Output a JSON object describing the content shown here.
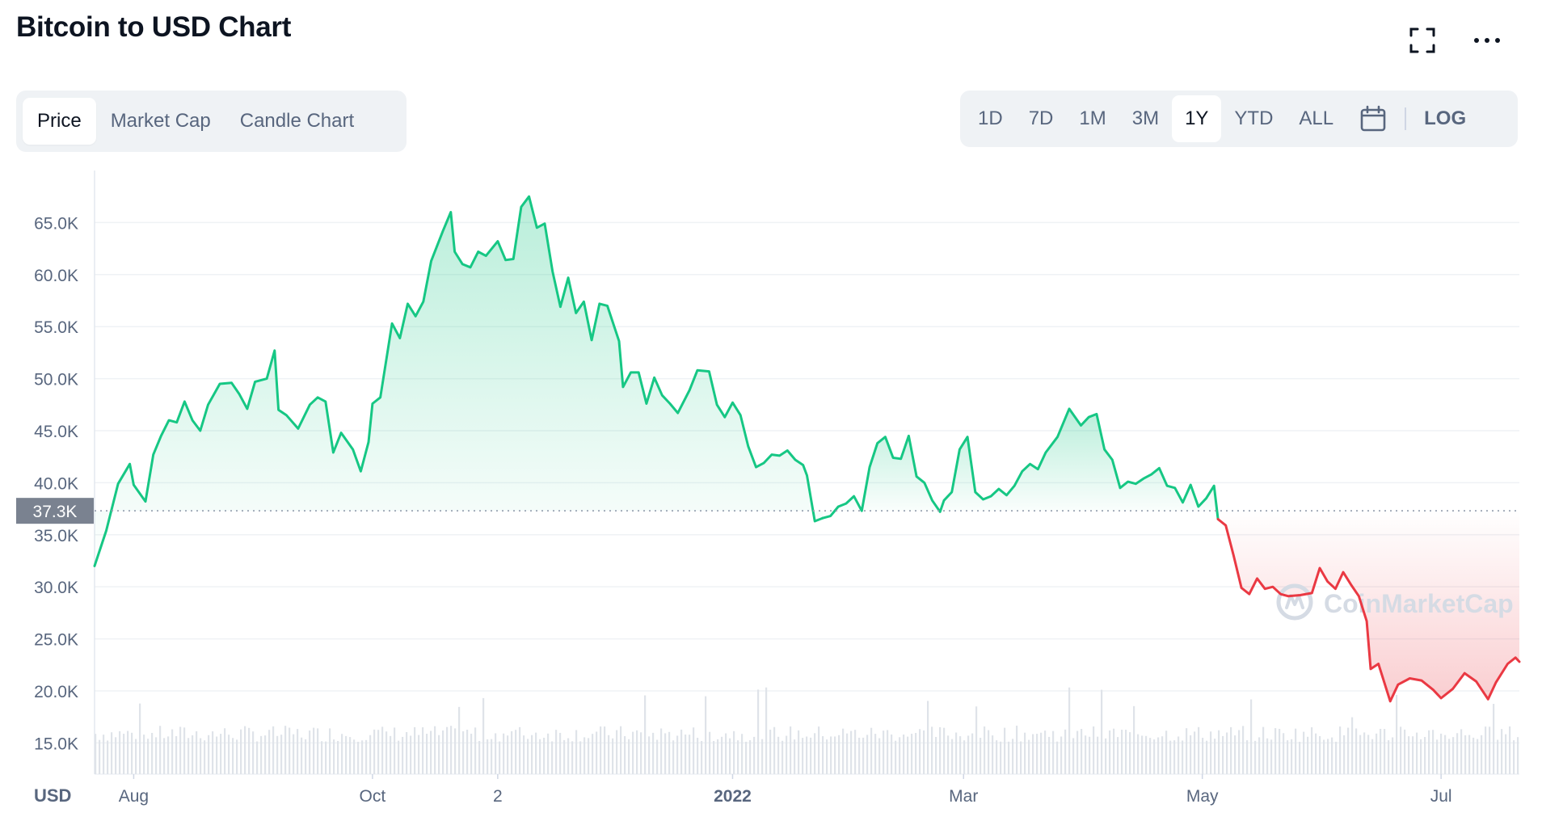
{
  "header": {
    "title": "Bitcoin to USD Chart",
    "icons": [
      "expand-icon",
      "more-horizontal-icon"
    ]
  },
  "tabs": [
    {
      "label": "Price",
      "active": true
    },
    {
      "label": "Market Cap",
      "active": false
    },
    {
      "label": "Candle Chart",
      "active": false
    }
  ],
  "ranges": [
    {
      "label": "1D",
      "active": false
    },
    {
      "label": "7D",
      "active": false
    },
    {
      "label": "1M",
      "active": false
    },
    {
      "label": "3M",
      "active": false
    },
    {
      "label": "1Y",
      "active": true
    },
    {
      "label": "YTD",
      "active": false
    },
    {
      "label": "ALL",
      "active": false
    }
  ],
  "calendar_icon": "calendar-icon",
  "log_label": "LOG",
  "colors": {
    "up": "#16c784",
    "down": "#ea3943",
    "grid": "#eff2f5",
    "current_badge": "#7a8290"
  },
  "chart_data": {
    "type": "line",
    "currency_label": "USD",
    "y_ticks": [
      15000,
      20000,
      25000,
      30000,
      35000,
      40000,
      45000,
      50000,
      55000,
      60000,
      65000
    ],
    "y_tick_labels": [
      "15.0K",
      "20.0K",
      "25.0K",
      "30.0K",
      "35.0K",
      "40.0K",
      "45.0K",
      "50.0K",
      "55.0K",
      "60.0K",
      "65.0K"
    ],
    "ylim": [
      12000,
      70000
    ],
    "x_range": [
      "2021-07-22",
      "2022-07-21"
    ],
    "x_ticks": [
      {
        "date": "2021-08-01",
        "label": "Aug"
      },
      {
        "date": "2021-10-01",
        "label": "Oct"
      },
      {
        "date": "2021-11-02",
        "label": "2"
      },
      {
        "date": "2022-01-01",
        "label": "2022"
      },
      {
        "date": "2022-03-01",
        "label": "Mar"
      },
      {
        "date": "2022-05-01",
        "label": "May"
      },
      {
        "date": "2022-07-01",
        "label": "Jul"
      }
    ],
    "reference_price": 37300,
    "reference_label": "37.3K",
    "watermark": "CoinMarketCap",
    "series": [
      {
        "points": [
          [
            "2021-07-22",
            32000
          ],
          [
            "2021-07-25",
            35400
          ],
          [
            "2021-07-28",
            39900
          ],
          [
            "2021-07-31",
            41800
          ],
          [
            "2021-08-01",
            39800
          ],
          [
            "2021-08-04",
            38200
          ],
          [
            "2021-08-06",
            42700
          ],
          [
            "2021-08-08",
            44500
          ],
          [
            "2021-08-10",
            46000
          ],
          [
            "2021-08-12",
            45800
          ],
          [
            "2021-08-14",
            47800
          ],
          [
            "2021-08-16",
            46000
          ],
          [
            "2021-08-18",
            45000
          ],
          [
            "2021-08-20",
            47500
          ],
          [
            "2021-08-23",
            49500
          ],
          [
            "2021-08-26",
            49600
          ],
          [
            "2021-08-28",
            48500
          ],
          [
            "2021-08-30",
            47100
          ],
          [
            "2021-09-01",
            49700
          ],
          [
            "2021-09-04",
            50000
          ],
          [
            "2021-09-06",
            52700
          ],
          [
            "2021-09-07",
            47000
          ],
          [
            "2021-09-09",
            46500
          ],
          [
            "2021-09-12",
            45200
          ],
          [
            "2021-09-15",
            47500
          ],
          [
            "2021-09-17",
            48200
          ],
          [
            "2021-09-19",
            47800
          ],
          [
            "2021-09-21",
            42900
          ],
          [
            "2021-09-23",
            44800
          ],
          [
            "2021-09-26",
            43200
          ],
          [
            "2021-09-28",
            41100
          ],
          [
            "2021-09-30",
            43900
          ],
          [
            "2021-10-01",
            47600
          ],
          [
            "2021-10-03",
            48200
          ],
          [
            "2021-10-06",
            55300
          ],
          [
            "2021-10-08",
            53900
          ],
          [
            "2021-10-10",
            57200
          ],
          [
            "2021-10-12",
            56000
          ],
          [
            "2021-10-14",
            57400
          ],
          [
            "2021-10-16",
            61300
          ],
          [
            "2021-10-19",
            64200
          ],
          [
            "2021-10-21",
            66000
          ],
          [
            "2021-10-22",
            62200
          ],
          [
            "2021-10-24",
            61000
          ],
          [
            "2021-10-26",
            60700
          ],
          [
            "2021-10-28",
            62200
          ],
          [
            "2021-10-30",
            61800
          ],
          [
            "2021-11-02",
            63200
          ],
          [
            "2021-11-04",
            61400
          ],
          [
            "2021-11-06",
            61500
          ],
          [
            "2021-11-08",
            66500
          ],
          [
            "2021-11-10",
            67500
          ],
          [
            "2021-11-12",
            64500
          ],
          [
            "2021-11-14",
            64900
          ],
          [
            "2021-11-16",
            60300
          ],
          [
            "2021-11-18",
            56900
          ],
          [
            "2021-11-20",
            59700
          ],
          [
            "2021-11-22",
            56300
          ],
          [
            "2021-11-24",
            57400
          ],
          [
            "2021-11-26",
            53700
          ],
          [
            "2021-11-28",
            57200
          ],
          [
            "2021-11-30",
            57000
          ],
          [
            "2021-12-03",
            53600
          ],
          [
            "2021-12-04",
            49200
          ],
          [
            "2021-12-06",
            50600
          ],
          [
            "2021-12-08",
            50600
          ],
          [
            "2021-12-10",
            47600
          ],
          [
            "2021-12-12",
            50100
          ],
          [
            "2021-12-14",
            48400
          ],
          [
            "2021-12-16",
            47600
          ],
          [
            "2021-12-18",
            46700
          ],
          [
            "2021-12-21",
            48900
          ],
          [
            "2021-12-23",
            50800
          ],
          [
            "2021-12-26",
            50700
          ],
          [
            "2021-12-28",
            47500
          ],
          [
            "2021-12-30",
            46300
          ],
          [
            "2022-01-01",
            47700
          ],
          [
            "2022-01-03",
            46500
          ],
          [
            "2022-01-05",
            43500
          ],
          [
            "2022-01-07",
            41500
          ],
          [
            "2022-01-09",
            41900
          ],
          [
            "2022-01-11",
            42700
          ],
          [
            "2022-01-13",
            42600
          ],
          [
            "2022-01-15",
            43100
          ],
          [
            "2022-01-17",
            42200
          ],
          [
            "2022-01-19",
            41700
          ],
          [
            "2022-01-20",
            40700
          ],
          [
            "2022-01-22",
            36300
          ],
          [
            "2022-01-24",
            36600
          ]
        ]
      },
      {
        "points": [
          [
            "2022-01-24",
            36600
          ],
          [
            "2022-01-26",
            36800
          ],
          [
            "2022-01-28",
            37700
          ],
          [
            "2022-01-30",
            38000
          ],
          [
            "2022-02-01",
            38700
          ],
          [
            "2022-02-03",
            37300
          ],
          [
            "2022-02-05",
            41500
          ],
          [
            "2022-02-07",
            43800
          ],
          [
            "2022-02-09",
            44400
          ],
          [
            "2022-02-11",
            42400
          ],
          [
            "2022-02-13",
            42300
          ],
          [
            "2022-02-15",
            44500
          ],
          [
            "2022-02-17",
            40600
          ],
          [
            "2022-02-19",
            40000
          ],
          [
            "2022-02-21",
            38300
          ],
          [
            "2022-02-23",
            37200
          ],
          [
            "2022-02-24",
            38300
          ],
          [
            "2022-02-26",
            39100
          ],
          [
            "2022-02-28",
            43200
          ],
          [
            "2022-03-02",
            44400
          ],
          [
            "2022-03-04",
            39100
          ],
          [
            "2022-03-06",
            38400
          ],
          [
            "2022-03-08",
            38700
          ],
          [
            "2022-03-10",
            39400
          ],
          [
            "2022-03-12",
            38800
          ],
          [
            "2022-03-14",
            39700
          ],
          [
            "2022-03-16",
            41100
          ],
          [
            "2022-03-18",
            41800
          ],
          [
            "2022-03-20",
            41300
          ],
          [
            "2022-03-22",
            42900
          ],
          [
            "2022-03-25",
            44400
          ],
          [
            "2022-03-28",
            47100
          ],
          [
            "2022-03-31",
            45500
          ],
          [
            "2022-04-02",
            46300
          ],
          [
            "2022-04-04",
            46600
          ],
          [
            "2022-04-06",
            43200
          ],
          [
            "2022-04-08",
            42200
          ],
          [
            "2022-04-10",
            39500
          ],
          [
            "2022-04-12",
            40100
          ],
          [
            "2022-04-14",
            39900
          ],
          [
            "2022-04-16",
            40400
          ],
          [
            "2022-04-18",
            40800
          ],
          [
            "2022-04-20",
            41400
          ],
          [
            "2022-04-22",
            39700
          ],
          [
            "2022-04-24",
            39500
          ],
          [
            "2022-04-26",
            38100
          ],
          [
            "2022-04-28",
            39800
          ],
          [
            "2022-04-30",
            37700
          ],
          [
            "2022-05-02",
            38500
          ],
          [
            "2022-05-04",
            39700
          ],
          [
            "2022-05-05",
            36500
          ]
        ]
      },
      {
        "points": [
          [
            "2022-05-05",
            36500
          ],
          [
            "2022-05-07",
            35900
          ],
          [
            "2022-05-09",
            33000
          ],
          [
            "2022-05-11",
            29900
          ],
          [
            "2022-05-13",
            29300
          ],
          [
            "2022-05-15",
            30800
          ],
          [
            "2022-05-17",
            29800
          ],
          [
            "2022-05-19",
            30000
          ],
          [
            "2022-05-21",
            29300
          ],
          [
            "2022-05-23",
            29100
          ],
          [
            "2022-05-26",
            29200
          ],
          [
            "2022-05-29",
            29400
          ],
          [
            "2022-05-31",
            31800
          ],
          [
            "2022-06-02",
            30500
          ],
          [
            "2022-06-04",
            29800
          ],
          [
            "2022-06-06",
            31400
          ],
          [
            "2022-06-08",
            30200
          ],
          [
            "2022-06-10",
            29100
          ],
          [
            "2022-06-12",
            26700
          ],
          [
            "2022-06-13",
            22100
          ],
          [
            "2022-06-15",
            22600
          ],
          [
            "2022-06-18",
            19000
          ],
          [
            "2022-06-20",
            20600
          ],
          [
            "2022-06-23",
            21200
          ],
          [
            "2022-06-26",
            21000
          ],
          [
            "2022-06-29",
            20100
          ],
          [
            "2022-07-01",
            19300
          ],
          [
            "2022-07-04",
            20200
          ],
          [
            "2022-07-07",
            21700
          ],
          [
            "2022-07-10",
            20900
          ],
          [
            "2022-07-13",
            19200
          ],
          [
            "2022-07-15",
            20800
          ],
          [
            "2022-07-18",
            22600
          ],
          [
            "2022-07-20",
            23200
          ],
          [
            "2022-07-21",
            22800
          ]
        ]
      }
    ]
  }
}
